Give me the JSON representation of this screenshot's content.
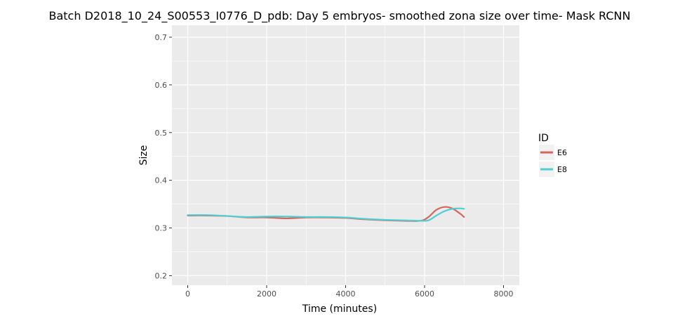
{
  "chart_data": {
    "type": "line",
    "title": "Batch D2018_10_24_S00553_I0776_D_pdb: Day 5 embryos- smoothed zona size over time- Mask RCNN",
    "xlabel": "Time (minutes)",
    "ylabel": "Size",
    "xlim": [
      -400,
      8400
    ],
    "ylim": [
      0.18,
      0.725
    ],
    "xticks": [
      0,
      2000,
      4000,
      6000,
      8000
    ],
    "xtick_labels": [
      "0",
      "2000",
      "4000",
      "6000",
      "8000"
    ],
    "yticks": [
      0.2,
      0.3,
      0.4,
      0.5,
      0.6,
      0.7
    ],
    "ytick_labels": [
      "0.2",
      "0.3",
      "0.4",
      "0.5",
      "0.6",
      "0.7"
    ],
    "grid": true,
    "legend": {
      "title": "ID",
      "position": "right"
    },
    "series": [
      {
        "name": "E6",
        "color": "#d9645a",
        "x": [
          0,
          500,
          1000,
          1500,
          2000,
          2500,
          3000,
          3500,
          4000,
          4500,
          5000,
          5500,
          5900,
          6100,
          6300,
          6500,
          6700,
          6900,
          7000
        ],
        "y": [
          0.326,
          0.326,
          0.325,
          0.322,
          0.322,
          0.32,
          0.322,
          0.322,
          0.321,
          0.318,
          0.316,
          0.315,
          0.315,
          0.323,
          0.338,
          0.344,
          0.341,
          0.33,
          0.323
        ]
      },
      {
        "name": "E8",
        "color": "#4ecfd4",
        "x": [
          0,
          500,
          1000,
          1500,
          2000,
          2500,
          3000,
          3500,
          4000,
          4500,
          5000,
          5500,
          5900,
          6100,
          6300,
          6500,
          6700,
          6900,
          7000
        ],
        "y": [
          0.327,
          0.327,
          0.325,
          0.323,
          0.324,
          0.324,
          0.323,
          0.323,
          0.322,
          0.319,
          0.317,
          0.316,
          0.315,
          0.316,
          0.326,
          0.335,
          0.34,
          0.341,
          0.34
        ]
      }
    ]
  }
}
